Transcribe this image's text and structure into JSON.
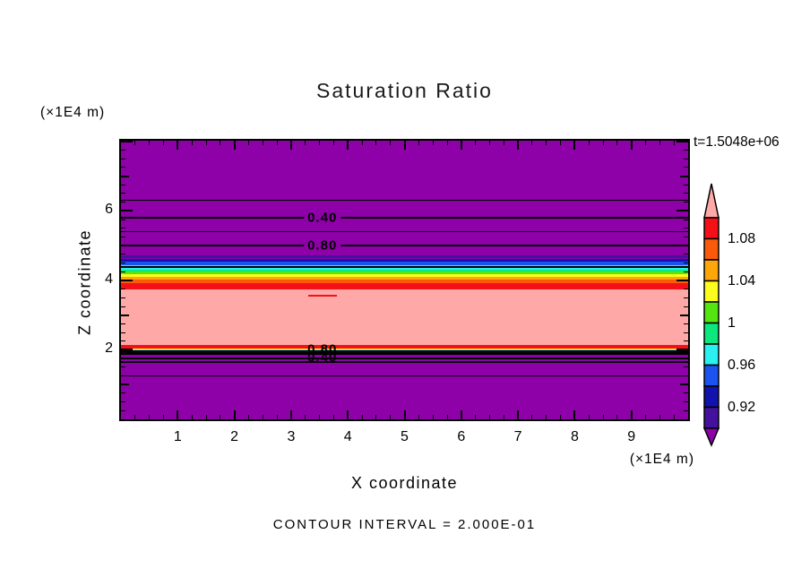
{
  "title": "Saturation Ratio",
  "time_label": "t=1.5048e+06",
  "footer_note": "CONTOUR INTERVAL = 2.000E-01",
  "x_axis": {
    "label": "X coordinate",
    "unit": "(×1E4 m)",
    "range": [
      0,
      10
    ],
    "major_tick_values": [
      1,
      2,
      3,
      4,
      5,
      6,
      7,
      8,
      9
    ],
    "major_tick_labels": [
      "1",
      "2",
      "3",
      "4",
      "5",
      "6",
      "7",
      "8",
      "9"
    ],
    "minor_tick_step": 0.25
  },
  "z_axis": {
    "label": "Z coordinate",
    "unit": "(×1E4 m)",
    "range": [
      0,
      8.02
    ],
    "major_tick_values": [
      2,
      4,
      6
    ],
    "major_tick_labels": [
      "2",
      "4",
      "6"
    ],
    "mid_tick_values": [
      1,
      3,
      5,
      7
    ],
    "minor_tick_step": 0.25
  },
  "colorbar": {
    "tick_labels": [
      "1.08",
      "1.04",
      "1",
      "0.96",
      "0.92"
    ],
    "levels": [
      1.1,
      1.08,
      1.06,
      1.04,
      1.02,
      1.0,
      0.98,
      0.96,
      0.94,
      0.92,
      0.9
    ],
    "cell_colors": [
      "red",
      "orangered",
      "orange",
      "yellow",
      "greenyellow",
      "springgreen",
      "cyan",
      "blue",
      "navy",
      "indigo"
    ],
    "over_arrow_color": "pink",
    "under_arrow_color": "purple"
  },
  "chart_data": {
    "type": "heatmap",
    "subtype": "filled-contour",
    "title": "Saturation Ratio",
    "xlabel": "X coordinate (×1E4 m)",
    "ylabel": "Z coordinate (×1E4 m)",
    "time": "t=1.5048e+06",
    "contour_interval": 0.2,
    "x_range": [
      0,
      10
    ],
    "z_range": [
      0,
      8.02
    ],
    "palette": {
      "purple": "#8e00a8",
      "indigo": "#44119e",
      "navy": "#1212ae",
      "blue": "#1a53f0",
      "cyan": "#2af0f0",
      "springgreen": "#0ce87d",
      "greenyellow": "#55e612",
      "yellow": "#fcfc1e",
      "orange": "#fca60a",
      "orangered": "#fa5a0a",
      "red": "#f51017",
      "pink": "#ffa8a8"
    },
    "bands": [
      {
        "color": "indigo",
        "z_top": 4.71,
        "z_bottom": 4.63
      },
      {
        "color": "navy",
        "z_top": 4.63,
        "z_bottom": 4.53
      },
      {
        "color": "blue",
        "z_top": 4.53,
        "z_bottom": 4.43
      },
      {
        "color": "cyan",
        "z_top": 4.43,
        "z_bottom": 4.31
      },
      {
        "color": "springgreen",
        "z_top": 4.31,
        "z_bottom": 4.25
      },
      {
        "color": "greenyellow",
        "z_top": 4.25,
        "z_bottom": 4.17
      },
      {
        "color": "yellow",
        "z_top": 4.17,
        "z_bottom": 4.11
      },
      {
        "color": "orange",
        "z_top": 4.11,
        "z_bottom": 4.02
      },
      {
        "color": "orangered",
        "z_top": 4.02,
        "z_bottom": 3.93
      },
      {
        "color": "red",
        "z_top": 3.93,
        "z_bottom": 3.74
      },
      {
        "color": "pink",
        "z_top": 3.74,
        "z_bottom": 2.14
      },
      {
        "color": "red",
        "z_top": 2.14,
        "z_bottom": 2.05
      },
      {
        "color": "yellow",
        "z_top": 2.05,
        "z_bottom": 2.02
      },
      {
        "color": "greenyellow",
        "z_top": 2.02,
        "z_bottom": 2.0
      },
      {
        "color": "cyan",
        "z_top": 2.0,
        "z_bottom": 1.97
      },
      {
        "color": "blue",
        "z_top": 1.97,
        "z_bottom": 1.95
      }
    ],
    "contour_lines": [
      {
        "z": 6.31,
        "w": 1
      },
      {
        "z": 5.8,
        "w": 2
      },
      {
        "z": 5.4,
        "w": 1
      },
      {
        "z": 5.01,
        "w": 2
      },
      {
        "z": 4.38,
        "w": 2
      },
      {
        "z": 1.935,
        "w": 5
      },
      {
        "z": 1.76,
        "w": 2
      },
      {
        "z": 1.65,
        "w": 2
      },
      {
        "z": 1.25,
        "w": 1
      }
    ],
    "contour_labels": [
      {
        "text": "0.40",
        "x": 3.55,
        "z": 5.8,
        "boxed": true
      },
      {
        "text": "0.80",
        "x": 3.55,
        "z": 5.01,
        "boxed": true
      },
      {
        "text": "0.80",
        "x": 3.55,
        "z": 2.01,
        "boxed": false
      },
      {
        "text": "0.40",
        "x": 3.55,
        "z": 1.77,
        "boxed": false
      }
    ],
    "red_dashes": [
      {
        "x0": 3.3,
        "x1": 3.8,
        "z": 3.56
      }
    ]
  }
}
